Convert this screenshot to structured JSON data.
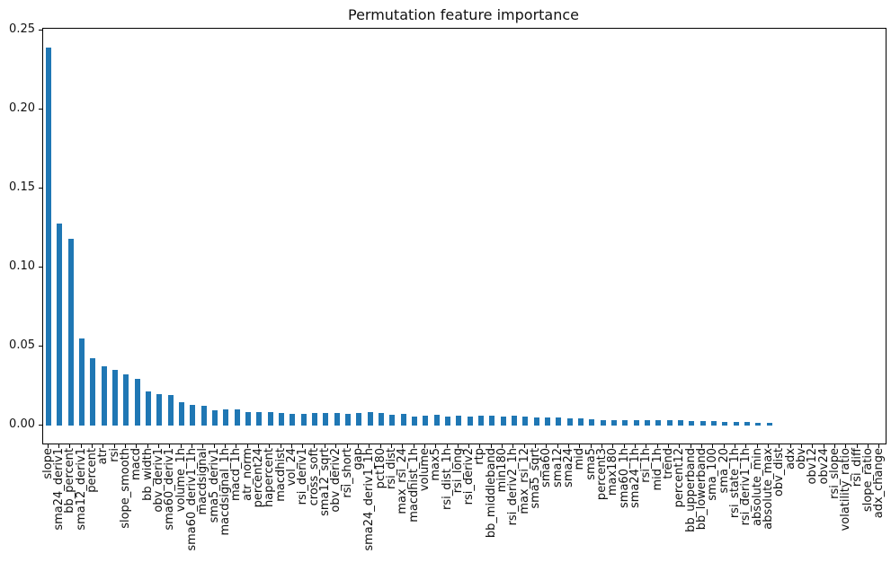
{
  "chart_data": {
    "type": "bar",
    "title": "Permutation feature importance",
    "xlabel": "",
    "ylabel": "",
    "grid": false,
    "legend": null,
    "bar_color": "#1f77b4",
    "background_color": "#ffffff",
    "ylim": [
      -0.0114,
      0.2511
    ],
    "yticks": [
      "0.00",
      "0.05",
      "0.10",
      "0.15",
      "0.20",
      "0.25"
    ],
    "ytick_values": [
      0.0,
      0.05,
      0.1,
      0.15,
      0.2,
      0.25
    ],
    "categories": [
      "slope",
      "sma24_deriv1",
      "bb_percent",
      "sma12_deriv1",
      "percent",
      "atr",
      "rsi",
      "slope_smooth",
      "macd",
      "bb_width",
      "obv_deriv1",
      "sma60_deriv1",
      "volume_1h",
      "sma60_deriv1_1h",
      "macdsignal",
      "sma5_deriv1",
      "macdsignal_1h",
      "macd_1h",
      "atr_norm",
      "percent24",
      "hapercent",
      "macdhist",
      "vol_24",
      "rsi_deriv1",
      "cross_soft",
      "sma12_sqrt",
      "obv_deriv2",
      "rsi_short",
      "gap",
      "sma24_deriv1_1h",
      "pct180",
      "rsi_dist",
      "max_rsi_24",
      "macdhist_1h",
      "volume",
      "max5",
      "rsi_dist_1h",
      "rsi_long",
      "rsi_deriv2",
      "rtp",
      "bb_middleband",
      "min180",
      "rsi_deriv2_1h",
      "max_rsi_12",
      "sma5_sqrt",
      "sma60",
      "sma12",
      "sma24",
      "mid",
      "sma5",
      "percent3",
      "max180",
      "sma60_1h",
      "sma24_1h",
      "rsi_1h",
      "mid_1h",
      "trend",
      "percent12",
      "bb_upperband",
      "bb_lowerband",
      "sma_100",
      "sma_20",
      "rsi_state_1h",
      "rsi_deriv1_1h",
      "absolute_min",
      "absolute_max",
      "obv_dist",
      "adx",
      "obv",
      "obv12",
      "obv24",
      "rsi_slope",
      "volatility_ratio",
      "rsi_diff",
      "slope_ratio",
      "adx_change"
    ],
    "values": [
      0.239,
      0.128,
      0.118,
      0.055,
      0.0425,
      0.0375,
      0.0352,
      0.0326,
      0.0297,
      0.0215,
      0.0199,
      0.0196,
      0.0149,
      0.0131,
      0.0125,
      0.0098,
      0.0104,
      0.0102,
      0.0088,
      0.0086,
      0.0087,
      0.008,
      0.0076,
      0.0075,
      0.0078,
      0.0078,
      0.0077,
      0.0074,
      0.0078,
      0.0084,
      0.0078,
      0.0068,
      0.0074,
      0.0059,
      0.0064,
      0.0068,
      0.0055,
      0.0061,
      0.0055,
      0.0061,
      0.006,
      0.0055,
      0.006,
      0.0055,
      0.0054,
      0.0049,
      0.0049,
      0.0045,
      0.0045,
      0.004,
      0.0036,
      0.0036,
      0.0036,
      0.0036,
      0.0035,
      0.0035,
      0.0032,
      0.0032,
      0.0028,
      0.0028,
      0.0027,
      0.0024,
      0.0021,
      0.0021,
      0.0018,
      0.0015,
      0.0,
      0.0,
      0.0,
      0.0,
      0.0,
      0.0,
      0.0,
      0.0,
      0.0,
      0.0
    ]
  }
}
